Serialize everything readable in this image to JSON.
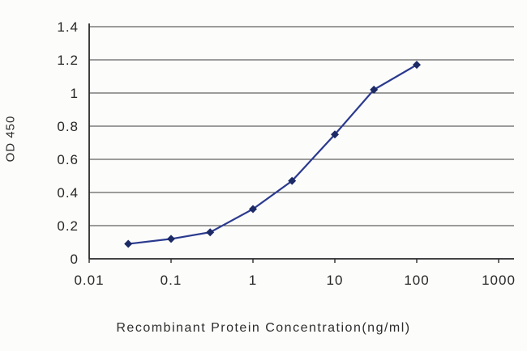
{
  "chart_data": {
    "type": "line",
    "title": "",
    "xlabel": "Recombinant Protein Concentration(ng/ml)",
    "ylabel": "OD 450",
    "x_scale": "log",
    "xlim": [
      0.01,
      1000
    ],
    "ylim": [
      0,
      1.4
    ],
    "x_tick_values": [
      0.01,
      0.1,
      1,
      10,
      100,
      1000
    ],
    "x_tick_labels": [
      "0.01",
      "0.1",
      "1",
      "10",
      "100",
      "1000"
    ],
    "y_tick_values": [
      0,
      0.2,
      0.4,
      0.6,
      0.8,
      1,
      1.2,
      1.4
    ],
    "y_tick_labels": [
      "0",
      "0.2",
      "0.4",
      "0.6",
      "0.8",
      "1",
      "1.2",
      "1.4"
    ],
    "grid": "horizontal",
    "legend": "none",
    "series": [
      {
        "name": "OD 450",
        "x": [
          0.03,
          0.1,
          0.3,
          1,
          3,
          10,
          30,
          100
        ],
        "y": [
          0.09,
          0.12,
          0.16,
          0.3,
          0.47,
          0.75,
          1.02,
          1.17
        ],
        "line_color": "#2b3a8f",
        "marker": "diamond",
        "marker_color": "#1c2a66"
      }
    ],
    "axis_color": "#2a2a2a",
    "grid_color": "#3c3c3c",
    "background_color": "#fcfcfa"
  }
}
